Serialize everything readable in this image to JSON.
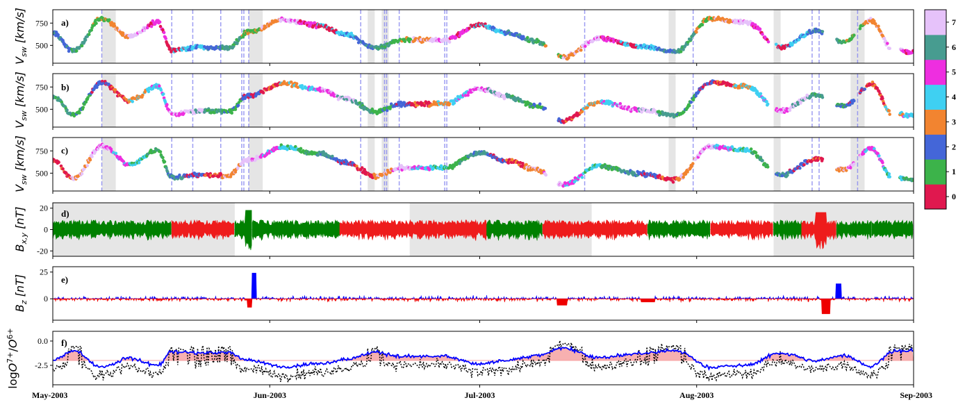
{
  "chart_data": {
    "type": "scatter",
    "x_axis": {
      "range": [
        "2003-05-01",
        "2003-09-01"
      ],
      "tick_labels": [
        "May-2003",
        "Jun-2003",
        "Jul-2003",
        "Aug-2003",
        "Sep-2003"
      ]
    },
    "colorbar": {
      "tick_labels": [
        "0",
        "1",
        "2",
        "3",
        "4",
        "5",
        "6",
        "7"
      ],
      "colors": [
        "#e0184f",
        "#3cb34a",
        "#4466d8",
        "#f28430",
        "#3fd0f2",
        "#ee2ee0",
        "#479c90",
        "#e6c2fa"
      ]
    },
    "event_bands": [
      [
        "2003-05-08",
        "2003-05-10"
      ],
      [
        "2003-05-29",
        "2003-05-31"
      ],
      [
        "2003-06-15",
        "2003-06-16"
      ],
      [
        "2003-06-17",
        "2003-06-18"
      ],
      [
        "2003-07-28",
        "2003-07-29"
      ],
      [
        "2003-08-12",
        "2003-08-13"
      ],
      [
        "2003-08-23",
        "2003-08-25"
      ]
    ],
    "dashed_lines": [
      "2003-05-08",
      "2003-05-18",
      "2003-05-21",
      "2003-05-25",
      "2003-05-28",
      "2003-05-28.3",
      "2003-05-29",
      "2003-06-14",
      "2003-06-17.4",
      "2003-06-17.7",
      "2003-06-19.5",
      "2003-06-26",
      "2003-06-26.3",
      "2003-07-16",
      "2003-07-31.5",
      "2003-08-17.5",
      "2003-08-18.5",
      "2003-08-24"
    ],
    "panels": [
      {
        "label": "a)",
        "ylabel": "V_sw [km/s]",
        "yticks": [
          500,
          750
        ],
        "ylim": [
          300,
          900
        ],
        "kind": "scatter",
        "series": [
          {
            "name": "",
            "x": [
              "2003-05-01",
              "2003-05-04",
              "2003-05-08",
              "2003-05-12",
              "2003-05-16",
              "2003-05-18",
              "2003-05-22",
              "2003-05-26",
              "2003-05-29",
              "2003-06-03",
              "2003-06-08",
              "2003-06-12",
              "2003-06-16",
              "2003-06-20",
              "2003-06-26",
              "2003-07-01",
              "2003-07-05",
              "2003-07-09",
              "2003-07-13",
              "2003-07-18",
              "2003-07-24",
              "2003-07-29",
              "2003-08-03",
              "2003-08-08",
              "2003-08-13",
              "2003-08-18",
              "2003-08-22",
              "2003-08-26",
              "2003-08-29",
              "2003-09-01"
            ],
            "y": [
              640,
              440,
              800,
              600,
              760,
              450,
              480,
              470,
              650,
              790,
              720,
              620,
              470,
              560,
              560,
              730,
              640,
              540,
              370,
              580,
              490,
              430,
              800,
              760,
              480,
              660,
              540,
              780,
              450,
              430
            ]
          }
        ]
      },
      {
        "label": "b)",
        "ylabel": "V_sw [km/s]",
        "yticks": [
          500,
          750
        ],
        "ylim": [
          300,
          900
        ],
        "kind": "scatter",
        "series": [
          {
            "name": "",
            "x": [
              "2003-05-01",
              "2003-05-04",
              "2003-05-08",
              "2003-05-12",
              "2003-05-16",
              "2003-05-18",
              "2003-05-22",
              "2003-05-26",
              "2003-05-29",
              "2003-06-03",
              "2003-06-08",
              "2003-06-12",
              "2003-06-16",
              "2003-06-20",
              "2003-06-26",
              "2003-07-01",
              "2003-07-05",
              "2003-07-09",
              "2003-07-13",
              "2003-07-18",
              "2003-07-24",
              "2003-07-29",
              "2003-08-03",
              "2003-08-08",
              "2003-08-13",
              "2003-08-18",
              "2003-08-22",
              "2003-08-26",
              "2003-08-29",
              "2003-09-01"
            ],
            "y": [
              640,
              440,
              800,
              600,
              760,
              450,
              480,
              470,
              650,
              790,
              720,
              620,
              470,
              560,
              560,
              730,
              640,
              540,
              370,
              580,
              490,
              430,
              800,
              760,
              480,
              660,
              540,
              780,
              450,
              430
            ]
          }
        ]
      },
      {
        "label": "c)",
        "ylabel": "V_sw [km/s]",
        "yticks": [
          500,
          750
        ],
        "ylim": [
          300,
          900
        ],
        "kind": "scatter",
        "series": [
          {
            "name": "",
            "x": [
              "2003-05-01",
              "2003-05-04",
              "2003-05-08",
              "2003-05-12",
              "2003-05-16",
              "2003-05-18",
              "2003-05-22",
              "2003-05-26",
              "2003-05-29",
              "2003-06-03",
              "2003-06-08",
              "2003-06-12",
              "2003-06-16",
              "2003-06-20",
              "2003-06-26",
              "2003-07-01",
              "2003-07-05",
              "2003-07-09",
              "2003-07-13",
              "2003-07-18",
              "2003-07-24",
              "2003-07-29",
              "2003-08-03",
              "2003-08-08",
              "2003-08-13",
              "2003-08-18",
              "2003-08-22",
              "2003-08-26",
              "2003-08-29",
              "2003-09-01"
            ],
            "y": [
              640,
              440,
              800,
              600,
              760,
              450,
              480,
              470,
              650,
              790,
              720,
              620,
              470,
              560,
              560,
              730,
              640,
              540,
              370,
              580,
              490,
              430,
              800,
              760,
              480,
              660,
              540,
              780,
              450,
              430
            ]
          }
        ]
      },
      {
        "label": "d)",
        "ylabel": "B_x,y [nT]",
        "yticks": [
          -20,
          0,
          20
        ],
        "ylim": [
          -25,
          25
        ],
        "kind": "polarity_fill",
        "sector_bands": [
          [
            "2003-05-01",
            "2003-05-27"
          ],
          [
            "2003-06-21",
            "2003-07-17"
          ],
          [
            "2003-08-12",
            "2003-09-01"
          ]
        ],
        "positive_color": "#008000",
        "negative_color": "#ee1c1c"
      },
      {
        "label": "e)",
        "ylabel": "B_z [nT]",
        "yticks": [
          0,
          25
        ],
        "ylim": [
          -20,
          30
        ],
        "kind": "signed_fill",
        "positive_color": "#0000ff",
        "negative_color": "#ee0000"
      },
      {
        "label": "f)",
        "ylabel": "logO^7+/O^6+",
        "yticks": [
          -2.5,
          0.0
        ],
        "ylim": [
          -4.5,
          1.0
        ],
        "kind": "lines",
        "threshold": -2.0,
        "series": [
          {
            "name": "",
            "style": "solid",
            "color": "#0000ff"
          },
          {
            "name": "",
            "style": "dotted",
            "color": "#000000"
          }
        ]
      }
    ]
  }
}
